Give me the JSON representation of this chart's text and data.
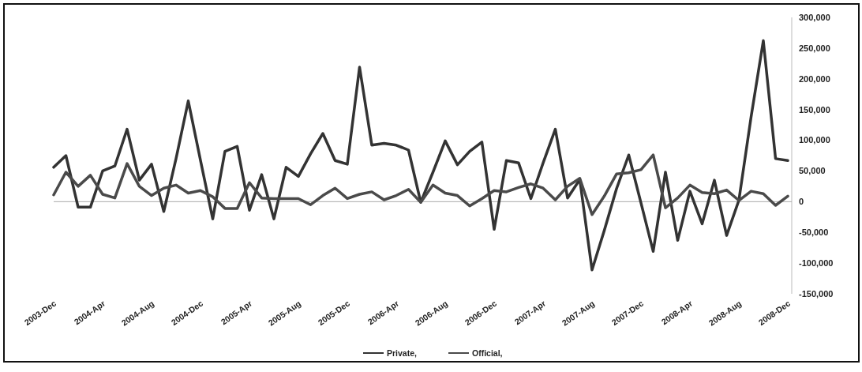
{
  "chart_data": {
    "type": "line",
    "categories": [
      "2003-Dec",
      null,
      null,
      null,
      "2004-Apr",
      null,
      null,
      null,
      "2004-Aug",
      null,
      null,
      null,
      "2004-Dec",
      null,
      null,
      null,
      "2005-Apr",
      null,
      null,
      null,
      "2005-Aug",
      null,
      null,
      null,
      "2005-Dec",
      null,
      null,
      null,
      "2006-Apr",
      null,
      null,
      null,
      "2006-Aug",
      null,
      null,
      null,
      "2006-Dec",
      null,
      null,
      null,
      "2007-Apr",
      null,
      null,
      null,
      "2007-Aug",
      null,
      null,
      null,
      "2007-Dec",
      null,
      null,
      null,
      "2008-Apr",
      null,
      null,
      null,
      "2008-Aug",
      null,
      null,
      null,
      "2008-Dec"
    ],
    "series": [
      {
        "name": "Private,",
        "color": "#333333",
        "values": [
          56000,
          75000,
          -9000,
          -9000,
          50000,
          58000,
          118000,
          35000,
          61000,
          -16000,
          70000,
          164000,
          67000,
          -28000,
          82000,
          90000,
          -14000,
          44000,
          -28000,
          56000,
          41000,
          78000,
          111000,
          67000,
          61000,
          219000,
          92000,
          95000,
          92000,
          84000,
          -1000,
          48000,
          99000,
          60000,
          82000,
          97000,
          -45000,
          67000,
          63000,
          5000,
          63000,
          118000,
          6000,
          36000,
          -111000,
          -47000,
          21000,
          76000,
          -2000,
          -81000,
          48000,
          -63000,
          17000,
          -36000,
          35000,
          -55000,
          2000,
          138000,
          262000,
          70000,
          67000
        ]
      },
      {
        "name": "Official,",
        "color": "#4a4a4a",
        "values": [
          11000,
          48000,
          25000,
          43000,
          12000,
          6000,
          62000,
          25000,
          10000,
          22000,
          27000,
          14000,
          18000,
          8000,
          -11000,
          -11000,
          31000,
          6000,
          5000,
          5000,
          5000,
          -5000,
          10000,
          22000,
          5000,
          12000,
          16000,
          3000,
          10000,
          20000,
          -1000,
          27000,
          14000,
          10000,
          -7000,
          5000,
          18000,
          16000,
          23000,
          29000,
          22000,
          3000,
          25000,
          38000,
          -21000,
          9000,
          45000,
          47000,
          52000,
          76000,
          -10000,
          6000,
          27000,
          15000,
          13000,
          19000,
          2000,
          17000,
          13000,
          -6000,
          9000
        ]
      }
    ],
    "ylim": [
      -150000,
      300000
    ],
    "yticks": [
      {
        "value": 300000,
        "label": "300,000"
      },
      {
        "value": 250000,
        "label": "250,000"
      },
      {
        "value": 200000,
        "label": "200,000"
      },
      {
        "value": 150000,
        "label": "150,000"
      },
      {
        "value": 100000,
        "label": "100,000"
      },
      {
        "value": 50000,
        "label": "50,000"
      },
      {
        "value": 0,
        "label": "0"
      },
      {
        "value": -50000,
        "label": "-50,000"
      },
      {
        "value": -100000,
        "label": "-100,000"
      },
      {
        "value": -150000,
        "label": "-150,000"
      }
    ],
    "legend": "bottom",
    "line_style": "solid"
  }
}
